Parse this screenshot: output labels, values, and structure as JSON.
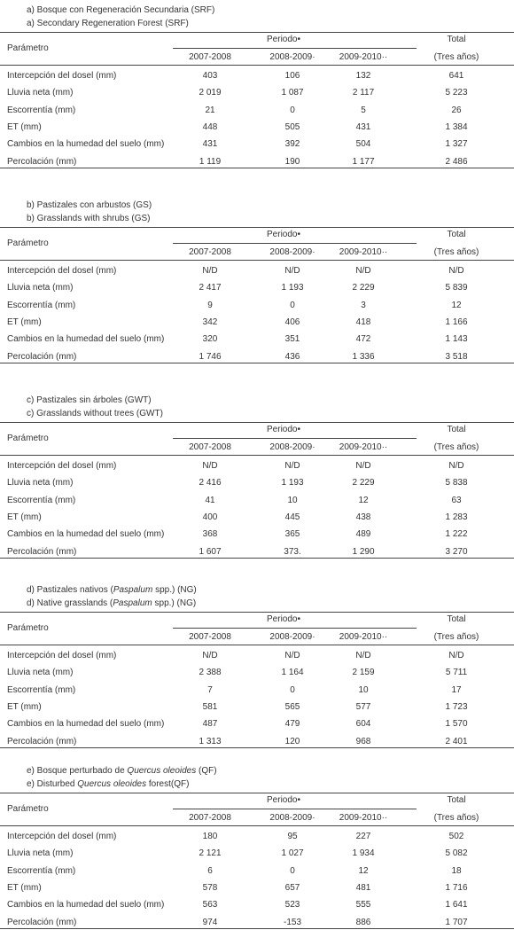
{
  "sections": [
    {
      "title_es": [
        "a) Bosque con Regeneración Secundaria (SRF)"
      ],
      "title_en": [
        "a) Secondary Regeneration Forest (SRF)"
      ],
      "header": {
        "param": "Parámetro",
        "period": "Periodo•",
        "years": [
          "2007-2008",
          "2008-2009·",
          "2009-2010··"
        ],
        "total": "Total",
        "total_sub": "(Tres años)"
      },
      "rows": [
        [
          "Intercepción del dosel (mm)",
          "403",
          "106",
          "132",
          "641"
        ],
        [
          "Lluvia neta (mm)",
          "2 019",
          "1 087",
          "2 117",
          "5 223"
        ],
        [
          "Escorrentía (mm)",
          "21",
          "0",
          "5",
          "26"
        ],
        [
          "ET (mm)",
          "448",
          "505",
          "431",
          "1 384"
        ],
        [
          "Cambios en la humedad del suelo (mm)",
          "431",
          "392",
          "504",
          "1 327"
        ],
        [
          "Percolación (mm)",
          "1 119",
          "190",
          "1 177",
          "2 486"
        ]
      ]
    },
    {
      "title_es": [
        "b) Pastizales con arbustos (GS)"
      ],
      "title_en": [
        "b) Grasslands with shrubs (GS)"
      ],
      "header": {
        "param": "Parámetro",
        "period": "Periodo•",
        "years": [
          "2007-2008",
          "2008-2009·",
          "2009-2010··"
        ],
        "total": "Total",
        "total_sub": "(Tres años)"
      },
      "rows": [
        [
          "Intercepción del dosel (mm)",
          "N/D",
          "N/D",
          "N/D",
          "N/D"
        ],
        [
          "Lluvia neta (mm)",
          "2 417",
          "1 193",
          "2 229",
          "5 839"
        ],
        [
          "Escorrentía (mm)",
          "9",
          "0",
          "3",
          "12"
        ],
        [
          "ET (mm)",
          "342",
          "406",
          "418",
          "1 166"
        ],
        [
          "Cambios en la humedad del suelo (mm)",
          "320",
          "351",
          "472",
          "1 143"
        ],
        [
          "Percolación (mm)",
          "1 746",
          "436",
          "1 336",
          "3 518"
        ]
      ]
    },
    {
      "title_es": [
        "c) Pastizales sin árboles (GWT)"
      ],
      "title_en": [
        "c) Grasslands without trees (GWT)"
      ],
      "header": {
        "param": "Parámetro",
        "period": "Periodo•",
        "years": [
          "2007-2008",
          "2008-2009·",
          "2009-2010··"
        ],
        "total": "Total",
        "total_sub": "(Tres años)"
      },
      "rows": [
        [
          "Intercepción del dosel (mm)",
          "N/D",
          "N/D",
          "N/D",
          "N/D"
        ],
        [
          "Lluvia neta (mm)",
          "2 416",
          "1 193",
          "2 229",
          "5 838"
        ],
        [
          "Escorrentía (mm)",
          "41",
          "10",
          "12",
          "63"
        ],
        [
          "ET (mm)",
          "400",
          "445",
          "438",
          "1 283"
        ],
        [
          "Cambios en la humedad del suelo (mm)",
          "368",
          "365",
          "489",
          "1 222"
        ],
        [
          "Percolación (mm)",
          "1 607",
          "373.",
          "1 290",
          "3 270"
        ]
      ]
    },
    {
      "title_es": [
        "d) Pastizales nativos (",
        "Paspalum",
        " spp.) (NG)"
      ],
      "title_en": [
        "d) Native grasslands (",
        "Paspalum",
        " spp.)  (NG)"
      ],
      "header": {
        "param": "Parámetro",
        "period": "Periodo•",
        "years": [
          "2007-2008",
          "2008-2009·",
          "2009-2010··"
        ],
        "total": "Total",
        "total_sub": "(Tres años)"
      },
      "rows": [
        [
          "Intercepción del dosel (mm)",
          "N/D",
          "N/D",
          "N/D",
          "N/D"
        ],
        [
          "Lluvia neta (mm)",
          "2 388",
          "1 164",
          "2 159",
          "5 711"
        ],
        [
          "Escorrentía (mm)",
          "7",
          "0",
          "10",
          "17"
        ],
        [
          "ET (mm)",
          "581",
          "565",
          "577",
          "1 723"
        ],
        [
          "Cambios en la humedad del suelo (mm)",
          "487",
          "479",
          "604",
          "1 570"
        ],
        [
          "Percolación (mm)",
          "1 313",
          "120",
          "968",
          "2 401"
        ]
      ]
    },
    {
      "title_es": [
        "e) Bosque perturbado de ",
        "Quercus oleoides",
        " (QF)"
      ],
      "title_en": [
        "e) Disturbed ",
        "Quercus oleoides",
        " forest(QF)"
      ],
      "header": {
        "param": "Parámetro",
        "period": "Periodo•",
        "years": [
          "2007-2008",
          "2008-2009·",
          "2009-2010··"
        ],
        "total": "Total",
        "total_sub": "(Tres años)"
      },
      "rows": [
        [
          "Intercepción del dosel (mm)",
          "180",
          "95",
          "227",
          "502"
        ],
        [
          "Lluvia neta (mm)",
          "2 121",
          "1 027",
          "1 934",
          "5 082"
        ],
        [
          "Escorrentía (mm)",
          "6",
          "0",
          "12",
          "18"
        ],
        [
          "ET (mm)",
          "578",
          "657",
          "481",
          "1 716"
        ],
        [
          "Cambios en la humedad del suelo (mm)",
          "563",
          "523",
          "555",
          "1 641"
        ],
        [
          "Percolación (mm)",
          "974",
          "-153",
          "886",
          "1 707"
        ]
      ]
    }
  ]
}
